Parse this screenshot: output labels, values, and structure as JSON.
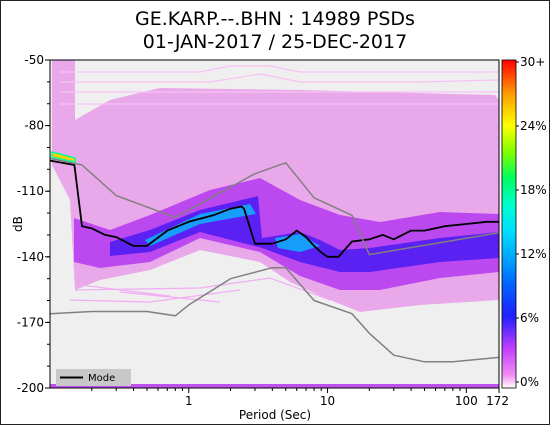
{
  "chart_data": {
    "type": "heatmap",
    "title_line1": "GE.KARP.--.BHN : 14989 PSDs",
    "title_line2": "01-JAN-2017 / 25-DEC-2017",
    "xlabel": "Period (Sec)",
    "ylabel": "dB",
    "x_scale": "log",
    "xlim": [
      0.1,
      172
    ],
    "ylim": [
      -200,
      -50
    ],
    "x_ticks": [
      {
        "value": 1,
        "label": "1"
      },
      {
        "value": 10,
        "label": "10"
      },
      {
        "value": 100,
        "label": "100"
      },
      {
        "value": 172,
        "label": "172"
      }
    ],
    "y_ticks": [
      {
        "value": -50,
        "label": "-50"
      },
      {
        "value": -80,
        "label": "-80"
      },
      {
        "value": -110,
        "label": "-110"
      },
      {
        "value": -140,
        "label": "-140"
      },
      {
        "value": -170,
        "label": "-170"
      },
      {
        "value": -200,
        "label": "-200"
      }
    ],
    "colorbar": {
      "ticks": [
        {
          "value": 0,
          "label": "0%"
        },
        {
          "value": 6,
          "label": "6%"
        },
        {
          "value": 12,
          "label": "12%"
        },
        {
          "value": 18,
          "label": "18%"
        },
        {
          "value": 24,
          "label": "24%"
        },
        {
          "value": 30,
          "label": "30+"
        }
      ],
      "range": [
        0,
        30
      ]
    },
    "legend": {
      "entry": "Mode",
      "color": "#000000",
      "placement": "bottom-left"
    },
    "series": [
      {
        "name": "Mode",
        "color": "#000000",
        "x": [
          0.1,
          0.15,
          0.17,
          0.2,
          0.25,
          0.3,
          0.4,
          0.5,
          0.7,
          1.0,
          1.5,
          2.0,
          2.4,
          2.5,
          3.0,
          4.0,
          5.0,
          6.0,
          7.0,
          8.0,
          9.0,
          10.0,
          12.0,
          15.0,
          20.0,
          25.0,
          30.0,
          40.0,
          50.0,
          70.0,
          100.0,
          140.0,
          172.0
        ],
        "y": [
          -96,
          -98,
          -126,
          -127,
          -130,
          -131,
          -135,
          -135,
          -128,
          -124,
          -121,
          -118,
          -117,
          -118,
          -134,
          -134,
          -132,
          -128,
          -131,
          -135,
          -138,
          -140,
          -140,
          -133,
          -132,
          -130,
          -132,
          -128,
          -128,
          -126,
          -125,
          -124,
          -124
        ]
      },
      {
        "name": "",
        "color": "#808080",
        "x": [
          0.1,
          0.17,
          0.3,
          0.8,
          3.0,
          5.0,
          8.0,
          15.0,
          20.0,
          172.0
        ],
        "y": [
          -95,
          -98,
          -112,
          -122,
          -102,
          -97,
          -113,
          -121,
          -139,
          -129
        ]
      },
      {
        "name": "",
        "color": "#808080",
        "x": [
          0.1,
          0.2,
          0.5,
          0.8,
          1.0,
          2.0,
          4.0,
          5.0,
          8.0,
          15.0,
          20.0,
          30.0,
          50.0,
          80.0,
          172.0
        ],
        "y": [
          -166,
          -165,
          -165,
          -167,
          -162,
          -150,
          -145,
          -145,
          -160,
          -166,
          -175,
          -185,
          -188,
          -188,
          -186
        ]
      }
    ]
  }
}
